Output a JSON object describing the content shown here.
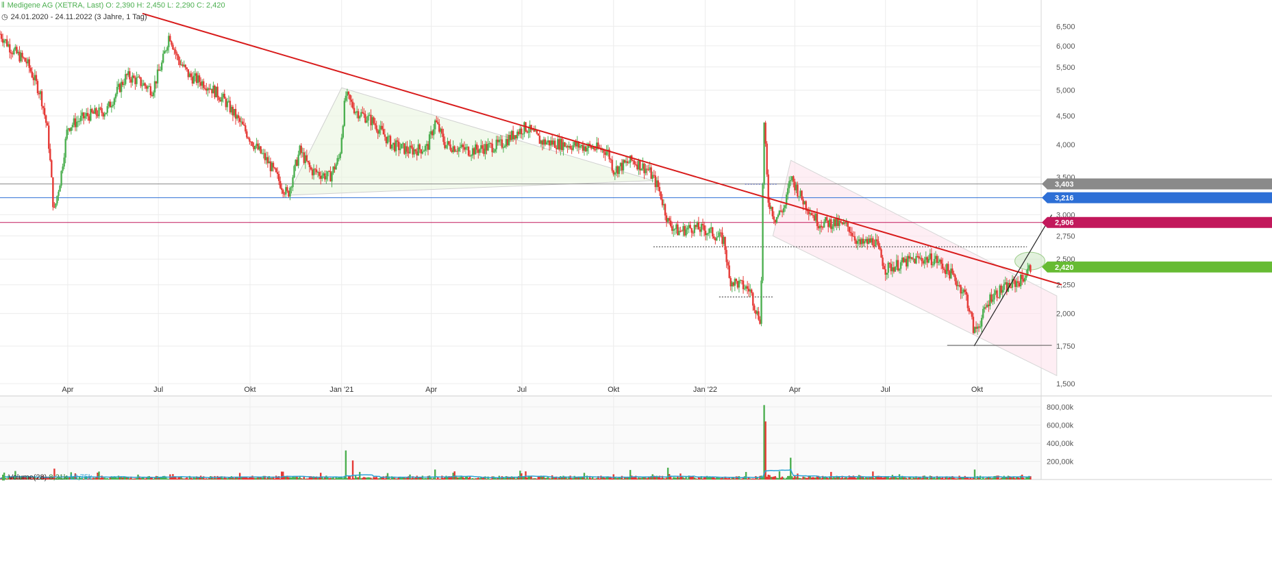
{
  "header": {
    "instrument_line": "Medigene AG (XETRA, Last)  O: 2,390  H: 2,450  L: 2,290  C: 2,420",
    "period": "24.01.2020 - 24.11.2022",
    "period_note": "(3 Jahre, 1 Tag)"
  },
  "volume_header": {
    "label": "Volume(28)",
    "value1": "8,21k",
    "value2": "13,75k"
  },
  "colors": {
    "up": "#4caf50",
    "down": "#e53935",
    "trendline_main": "#d81b1b",
    "level_gray": "#8a8a8a",
    "level_blue": "#2d6fd6",
    "level_magenta": "#c2185b",
    "last_price": "#66bb33",
    "volume_avg": "#29a3d6"
  },
  "icons": {
    "header": "candlestick-icon",
    "period": "clock-icon",
    "volume": "bar-chart-icon"
  },
  "chart_data": [
    {
      "type": "candlestick",
      "x_range": [
        "2020-01-24",
        "2022-11-24"
      ],
      "x_ticks": [
        {
          "label": "Apr",
          "date": "2020-04-01"
        },
        {
          "label": "Jul",
          "date": "2020-07-01"
        },
        {
          "label": "Okt",
          "date": "2020-10-01"
        },
        {
          "label": "Jan '21",
          "date": "2021-01-01"
        },
        {
          "label": "Apr",
          "date": "2021-04-01"
        },
        {
          "label": "Jul",
          "date": "2021-07-01"
        },
        {
          "label": "Okt",
          "date": "2021-10-01"
        },
        {
          "label": "Jan '22",
          "date": "2022-01-01"
        },
        {
          "label": "Apr",
          "date": "2022-04-01"
        },
        {
          "label": "Jul",
          "date": "2022-07-01"
        },
        {
          "label": "Okt",
          "date": "2022-10-01"
        }
      ],
      "y_scale": "log",
      "ylim": [
        1.45,
        7.0
      ],
      "y_ticks": [
        {
          "label": "6,500",
          "value": 6.5
        },
        {
          "label": "6,000",
          "value": 6.0
        },
        {
          "label": "5,500",
          "value": 5.5
        },
        {
          "label": "5,000",
          "value": 5.0
        },
        {
          "label": "4,500",
          "value": 4.5
        },
        {
          "label": "4,000",
          "value": 4.0
        },
        {
          "label": "3,500",
          "value": 3.5
        },
        {
          "label": "3,000",
          "value": 3.0
        },
        {
          "label": "2,750",
          "value": 2.75
        },
        {
          "label": "2,500",
          "value": 2.5
        },
        {
          "label": "2,250",
          "value": 2.25
        },
        {
          "label": "2,000",
          "value": 2.0
        },
        {
          "label": "1,750",
          "value": 1.75
        },
        {
          "label": "1,500",
          "value": 1.5
        }
      ],
      "grid": true,
      "price_path": [
        [
          "2020-01-24",
          6.3
        ],
        [
          "2020-02-05",
          5.9
        ],
        [
          "2020-02-20",
          5.6
        ],
        [
          "2020-03-05",
          4.9
        ],
        [
          "2020-03-12",
          4.2
        ],
        [
          "2020-03-18",
          3.0
        ],
        [
          "2020-03-25",
          3.5
        ],
        [
          "2020-04-01",
          4.3
        ],
        [
          "2020-04-20",
          4.5
        ],
        [
          "2020-05-10",
          4.6
        ],
        [
          "2020-05-30",
          5.3
        ],
        [
          "2020-06-10",
          5.2
        ],
        [
          "2020-06-25",
          5.0
        ],
        [
          "2020-07-05",
          5.6
        ],
        [
          "2020-07-12",
          6.3
        ],
        [
          "2020-07-20",
          5.7
        ],
        [
          "2020-08-01",
          5.3
        ],
        [
          "2020-08-20",
          5.1
        ],
        [
          "2020-09-05",
          4.8
        ],
        [
          "2020-09-20",
          4.4
        ],
        [
          "2020-10-05",
          4.0
        ],
        [
          "2020-10-20",
          3.7
        ],
        [
          "2020-11-01",
          3.4
        ],
        [
          "2020-11-08",
          3.25
        ],
        [
          "2020-11-20",
          3.9
        ],
        [
          "2020-12-01",
          3.6
        ],
        [
          "2020-12-20",
          3.5
        ],
        [
          "2020-12-30",
          3.8
        ],
        [
          "2021-01-05",
          4.9
        ],
        [
          "2021-01-15",
          4.6
        ],
        [
          "2021-02-01",
          4.4
        ],
        [
          "2021-02-20",
          4.0
        ],
        [
          "2021-03-10",
          3.9
        ],
        [
          "2021-03-28",
          3.95
        ],
        [
          "2021-04-05",
          4.4
        ],
        [
          "2021-04-15",
          4.0
        ],
        [
          "2021-05-10",
          3.9
        ],
        [
          "2021-06-10",
          4.0
        ],
        [
          "2021-06-25",
          4.2
        ],
        [
          "2021-07-05",
          4.3
        ],
        [
          "2021-07-20",
          4.05
        ],
        [
          "2021-08-15",
          4.0
        ],
        [
          "2021-09-10",
          3.95
        ],
        [
          "2021-09-25",
          3.9
        ],
        [
          "2021-10-01",
          3.6
        ],
        [
          "2021-10-20",
          3.75
        ],
        [
          "2021-11-05",
          3.6
        ],
        [
          "2021-11-15",
          3.35
        ],
        [
          "2021-11-25",
          2.9
        ],
        [
          "2021-12-05",
          2.8
        ],
        [
          "2021-12-20",
          2.85
        ],
        [
          "2022-01-05",
          2.8
        ],
        [
          "2022-01-20",
          2.7
        ],
        [
          "2022-01-25",
          2.3
        ],
        [
          "2022-02-05",
          2.25
        ],
        [
          "2022-02-15",
          2.2
        ],
        [
          "2022-02-22",
          2.0
        ],
        [
          "2022-02-26",
          1.95
        ],
        [
          "2022-03-01",
          4.4
        ],
        [
          "2022-03-05",
          3.2
        ],
        [
          "2022-03-12",
          2.95
        ],
        [
          "2022-03-22",
          3.1
        ],
        [
          "2022-03-28",
          3.5
        ],
        [
          "2022-04-08",
          3.2
        ],
        [
          "2022-04-25",
          2.9
        ],
        [
          "2022-05-10",
          2.9
        ],
        [
          "2022-05-25",
          2.85
        ],
        [
          "2022-06-05",
          2.65
        ],
        [
          "2022-06-20",
          2.7
        ],
        [
          "2022-07-01",
          2.4
        ],
        [
          "2022-07-15",
          2.45
        ],
        [
          "2022-08-01",
          2.5
        ],
        [
          "2022-08-20",
          2.5
        ],
        [
          "2022-09-05",
          2.35
        ],
        [
          "2022-09-20",
          2.15
        ],
        [
          "2022-09-28",
          1.85
        ],
        [
          "2022-10-05",
          1.95
        ],
        [
          "2022-10-15",
          2.15
        ],
        [
          "2022-10-25",
          2.2
        ],
        [
          "2022-11-05",
          2.25
        ],
        [
          "2022-11-15",
          2.3
        ],
        [
          "2022-11-24",
          2.42
        ]
      ],
      "price_labels": [
        {
          "label": "3,403",
          "value": 3.403,
          "color": "#8a8a8a"
        },
        {
          "label": "3,216",
          "value": 3.216,
          "color": "#2d6fd6"
        },
        {
          "label": "2,906",
          "value": 2.906,
          "color": "#c2185b"
        },
        {
          "label": "2,420",
          "value": 2.42,
          "color": "#66bb33"
        }
      ],
      "horizontal_lines": [
        {
          "value": 3.403,
          "color": "#8a8a8a"
        },
        {
          "value": 3.216,
          "color": "#2d6fd6"
        },
        {
          "value": 2.906,
          "color": "#c2185b"
        }
      ],
      "trend_lines": [
        {
          "from": [
            "2020-06-15",
            6.85
          ],
          "to": [
            "2022-12-25",
            2.25
          ],
          "color": "#d81b1b",
          "width": 2
        },
        {
          "from": [
            "2022-09-28",
            1.75
          ],
          "to": [
            "2022-12-15",
            3.0
          ],
          "color": "#222222",
          "width": 1.2
        },
        {
          "from": [
            "2022-09-01",
            1.755
          ],
          "to": [
            "2022-12-15",
            1.755
          ],
          "color": "#555555",
          "width": 1
        }
      ]
    },
    {
      "type": "bar",
      "title": "Volume(28)",
      "ylim": [
        0,
        830000
      ],
      "y_ticks": [
        {
          "label": "800,00k",
          "value": 800000
        },
        {
          "label": "600,00k",
          "value": 600000
        },
        {
          "label": "400,00k",
          "value": 400000
        },
        {
          "label": "200,00k",
          "value": 200000
        }
      ],
      "average_line": "28-day average",
      "spikes": [
        [
          "2020-03-18",
          120000
        ],
        [
          "2020-04-05",
          80000
        ],
        [
          "2020-07-15",
          60000
        ],
        [
          "2021-01-05",
          320000
        ],
        [
          "2021-01-12",
          210000
        ],
        [
          "2021-04-05",
          110000
        ],
        [
          "2021-07-05",
          90000
        ],
        [
          "2021-11-25",
          130000
        ],
        [
          "2022-03-01",
          820000
        ],
        [
          "2022-03-03",
          640000
        ],
        [
          "2022-03-28",
          240000
        ],
        [
          "2022-09-28",
          110000
        ]
      ]
    }
  ]
}
